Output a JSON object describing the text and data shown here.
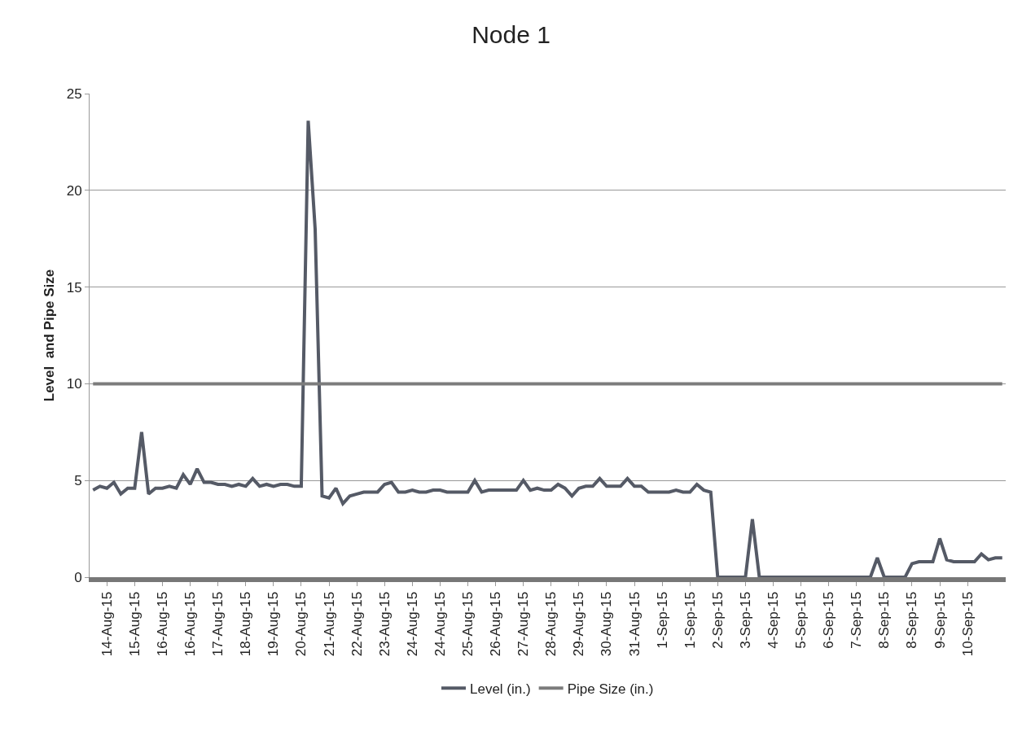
{
  "chart_data": {
    "type": "line",
    "title": "Node 1",
    "ylabel": "Level  and Pipe Size",
    "categories": [
      null,
      null,
      "14-Aug-15",
      null,
      null,
      null,
      "15-Aug-15",
      null,
      null,
      null,
      "16-Aug-15",
      null,
      null,
      null,
      "16-Aug-15",
      null,
      null,
      null,
      "17-Aug-15",
      null,
      null,
      null,
      "18-Aug-15",
      null,
      null,
      null,
      "19-Aug-15",
      null,
      null,
      null,
      "20-Aug-15",
      null,
      null,
      null,
      "21-Aug-15",
      null,
      null,
      null,
      "22-Aug-15",
      null,
      null,
      null,
      "23-Aug-15",
      null,
      null,
      null,
      "24-Aug-15",
      null,
      null,
      null,
      "24-Aug-15",
      null,
      null,
      null,
      "25-Aug-15",
      null,
      null,
      null,
      "26-Aug-15",
      null,
      null,
      null,
      "27-Aug-15",
      null,
      null,
      null,
      "28-Aug-15",
      null,
      null,
      null,
      "29-Aug-15",
      null,
      null,
      null,
      "30-Aug-15",
      null,
      null,
      null,
      "31-Aug-15",
      null,
      null,
      null,
      "1-Sep-15",
      null,
      null,
      null,
      "1-Sep-15",
      null,
      null,
      null,
      "2-Sep-15",
      null,
      null,
      null,
      "3-Sep-15",
      null,
      null,
      null,
      "4-Sep-15",
      null,
      null,
      null,
      "5-Sep-15",
      null,
      null,
      null,
      "6-Sep-15",
      null,
      null,
      null,
      "7-Sep-15",
      null,
      null,
      null,
      "8-Sep-15",
      null,
      null,
      null,
      "8-Sep-15",
      null,
      null,
      null,
      "9-Sep-15",
      null,
      null,
      null,
      "10-Sep-15",
      null,
      null,
      null,
      null,
      null
    ],
    "series": [
      {
        "name": "Level (in.)",
        "color": "#555a66",
        "values": [
          4.5,
          4.7,
          4.6,
          4.9,
          4.3,
          4.6,
          4.6,
          7.5,
          4.3,
          4.6,
          4.6,
          4.7,
          4.6,
          5.3,
          4.8,
          5.6,
          4.9,
          4.9,
          4.8,
          4.8,
          4.7,
          4.8,
          4.7,
          5.1,
          4.7,
          4.8,
          4.7,
          4.8,
          4.8,
          4.7,
          4.7,
          23.6,
          18,
          4.2,
          4.1,
          4.6,
          3.8,
          4.2,
          4.3,
          4.4,
          4.4,
          4.4,
          4.8,
          4.9,
          4.4,
          4.4,
          4.5,
          4.4,
          4.4,
          4.5,
          4.5,
          4.4,
          4.4,
          4.4,
          4.4,
          5.0,
          4.4,
          4.5,
          4.5,
          4.5,
          4.5,
          4.5,
          5.0,
          4.5,
          4.6,
          4.5,
          4.5,
          4.8,
          4.6,
          4.2,
          4.6,
          4.7,
          4.7,
          5.1,
          4.7,
          4.7,
          4.7,
          5.1,
          4.7,
          4.7,
          4.4,
          4.4,
          4.4,
          4.4,
          4.5,
          4.4,
          4.4,
          4.8,
          4.5,
          4.4,
          0,
          0,
          0,
          0,
          0,
          3.0,
          0,
          0,
          0,
          0,
          0,
          0,
          0,
          0,
          0,
          0,
          0,
          0,
          0,
          0,
          0,
          0,
          0,
          1.0,
          0,
          0,
          0,
          0,
          0.7,
          0.8,
          0.8,
          0.8,
          2.0,
          0.9,
          0.8,
          0.8,
          0.8,
          0.8,
          1.2,
          0.9,
          1.0,
          1.0
        ]
      },
      {
        "name": "Pipe Size (in.)",
        "color": "#7c7c7c",
        "values": [
          10,
          10,
          10,
          10,
          10,
          10,
          10,
          10,
          10,
          10,
          10,
          10,
          10,
          10,
          10,
          10,
          10,
          10,
          10,
          10,
          10,
          10,
          10,
          10,
          10,
          10,
          10,
          10,
          10,
          10,
          10,
          10,
          10,
          10,
          10,
          10,
          10,
          10,
          10,
          10,
          10,
          10,
          10,
          10,
          10,
          10,
          10,
          10,
          10,
          10,
          10,
          10,
          10,
          10,
          10,
          10,
          10,
          10,
          10,
          10,
          10,
          10,
          10,
          10,
          10,
          10,
          10,
          10,
          10,
          10,
          10,
          10,
          10,
          10,
          10,
          10,
          10,
          10,
          10,
          10,
          10,
          10,
          10,
          10,
          10,
          10,
          10,
          10,
          10,
          10,
          10,
          10,
          10,
          10,
          10,
          10,
          10,
          10,
          10,
          10,
          10,
          10,
          10,
          10,
          10,
          10,
          10,
          10,
          10,
          10,
          10,
          10,
          10,
          10,
          10,
          10,
          10,
          10,
          10,
          10,
          10,
          10,
          10,
          10,
          10,
          10,
          10,
          10,
          10,
          10,
          10,
          10
        ]
      }
    ],
    "ylim": [
      0,
      25
    ],
    "yticks": [
      0,
      5,
      10,
      15,
      20,
      25
    ],
    "grid": "y",
    "legend": "bottom",
    "marker": "none",
    "line_style": "solid"
  }
}
